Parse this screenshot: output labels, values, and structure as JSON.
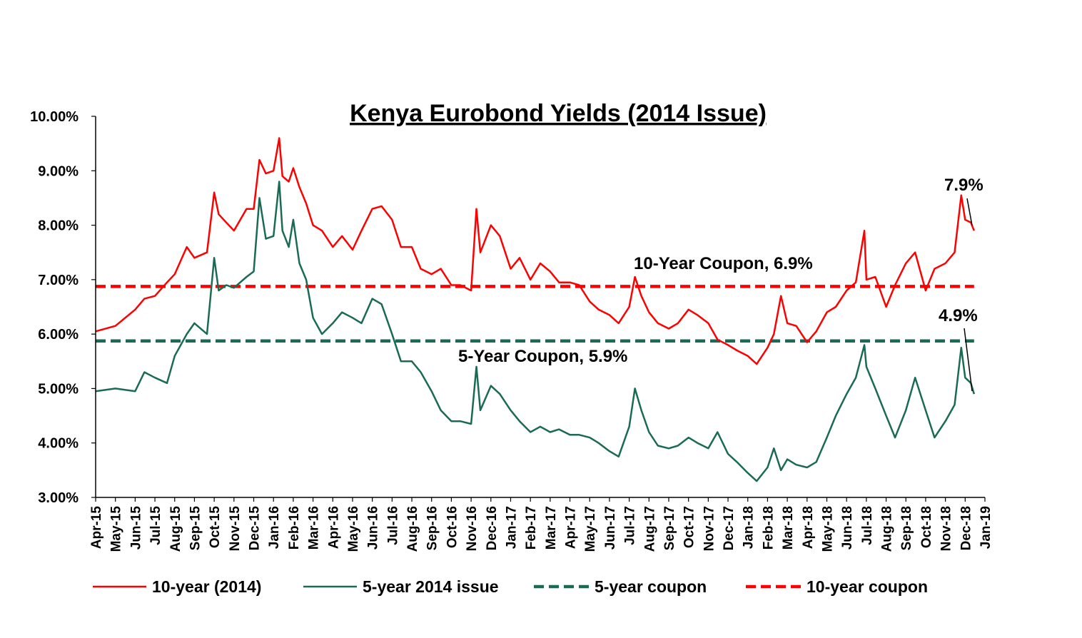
{
  "chart_data": {
    "type": "line",
    "title": "Kenya Eurobond  Yields (2014 Issue)",
    "xlabel": "",
    "ylabel": "",
    "ylim": [
      3.0,
      10.0
    ],
    "y_tick_labels": [
      "3.00%",
      "4.00%",
      "5.00%",
      "6.00%",
      "7.00%",
      "8.00%",
      "9.00%",
      "10.00%"
    ],
    "x_tick_labels": [
      "Apr-15",
      "May-15",
      "Jun-15",
      "Jul-15",
      "Aug-15",
      "Sep-15",
      "Oct-15",
      "Nov-15",
      "Dec-15",
      "Jan-16",
      "Feb-16",
      "Mar-16",
      "Apr-16",
      "May-16",
      "Jun-16",
      "Jul-16",
      "Aug-16",
      "Sep-16",
      "Oct-16",
      "Nov-16",
      "Dec-16",
      "Jan-17",
      "Feb-17",
      "Mar-17",
      "Apr-17",
      "May-17",
      "Jun-17",
      "Jul-17",
      "Aug-17",
      "Sep-17",
      "Oct-17",
      "Nov-17",
      "Dec-17",
      "Jan-18",
      "Feb-18",
      "Mar-18",
      "Apr-18",
      "May-18",
      "Jun-18",
      "Jul-18",
      "Aug-18",
      "Sep-18",
      "Oct-18",
      "Nov-18",
      "Dec-18",
      "Jan-19"
    ],
    "grid": false,
    "legend_position": "bottom",
    "series": [
      {
        "name": "10-year (2014)",
        "color": "#ff0000",
        "style": "solid",
        "x": [
          "2015-04-01",
          "2015-05-01",
          "2015-06-01",
          "2015-06-15",
          "2015-07-01",
          "2015-07-20",
          "2015-08-01",
          "2015-08-20",
          "2015-09-01",
          "2015-09-20",
          "2015-10-01",
          "2015-10-08",
          "2015-10-20",
          "2015-11-01",
          "2015-11-20",
          "2015-12-01",
          "2015-12-10",
          "2015-12-20",
          "2016-01-01",
          "2016-01-10",
          "2016-01-15",
          "2016-01-25",
          "2016-02-01",
          "2016-02-10",
          "2016-02-20",
          "2016-03-01",
          "2016-03-15",
          "2016-04-01",
          "2016-04-15",
          "2016-05-01",
          "2016-05-15",
          "2016-06-01",
          "2016-06-15",
          "2016-07-01",
          "2016-07-15",
          "2016-08-01",
          "2016-08-15",
          "2016-09-01",
          "2016-09-15",
          "2016-10-01",
          "2016-10-15",
          "2016-11-01",
          "2016-11-09",
          "2016-11-15",
          "2016-12-01",
          "2016-12-15",
          "2017-01-01",
          "2017-01-15",
          "2017-02-01",
          "2017-02-15",
          "2017-03-01",
          "2017-03-15",
          "2017-04-01",
          "2017-04-15",
          "2017-05-01",
          "2017-05-15",
          "2017-06-01",
          "2017-06-15",
          "2017-07-01",
          "2017-07-10",
          "2017-07-20",
          "2017-08-01",
          "2017-08-15",
          "2017-09-01",
          "2017-09-15",
          "2017-10-01",
          "2017-10-15",
          "2017-11-01",
          "2017-11-15",
          "2017-12-01",
          "2017-12-15",
          "2018-01-01",
          "2018-01-15",
          "2018-02-01",
          "2018-02-10",
          "2018-02-20",
          "2018-03-01",
          "2018-03-15",
          "2018-04-01",
          "2018-04-15",
          "2018-05-01",
          "2018-05-15",
          "2018-06-01",
          "2018-06-15",
          "2018-06-28",
          "2018-07-01",
          "2018-07-15",
          "2018-08-01",
          "2018-08-15",
          "2018-09-01",
          "2018-09-15",
          "2018-10-01",
          "2018-10-15",
          "2018-11-01",
          "2018-11-15",
          "2018-11-25",
          "2018-12-01",
          "2018-12-10",
          "2018-12-15"
        ],
        "y": [
          6.05,
          6.15,
          6.45,
          6.65,
          6.7,
          6.95,
          7.1,
          7.6,
          7.4,
          7.5,
          8.6,
          8.2,
          8.05,
          7.9,
          8.3,
          8.3,
          9.2,
          8.95,
          9.0,
          9.6,
          8.9,
          8.8,
          9.05,
          8.7,
          8.4,
          8.0,
          7.9,
          7.6,
          7.8,
          7.55,
          7.9,
          8.3,
          8.35,
          8.1,
          7.6,
          7.6,
          7.2,
          7.1,
          7.2,
          6.9,
          6.9,
          6.8,
          8.3,
          7.5,
          8.0,
          7.8,
          7.2,
          7.4,
          7.0,
          7.3,
          7.15,
          6.95,
          6.95,
          6.9,
          6.6,
          6.45,
          6.35,
          6.2,
          6.5,
          7.05,
          6.7,
          6.4,
          6.2,
          6.1,
          6.2,
          6.45,
          6.35,
          6.2,
          5.9,
          5.8,
          5.7,
          5.6,
          5.45,
          5.75,
          6.0,
          6.7,
          6.2,
          6.15,
          5.85,
          6.05,
          6.4,
          6.5,
          6.8,
          6.95,
          7.9,
          7.0,
          7.05,
          6.5,
          6.9,
          7.3,
          7.5,
          6.8,
          7.2,
          7.3,
          7.5,
          8.55,
          8.1,
          8.05,
          7.9
        ]
      },
      {
        "name": "5-year 2014 issue",
        "color": "#1a6b55",
        "style": "solid",
        "x": [
          "2015-04-01",
          "2015-05-01",
          "2015-06-01",
          "2015-06-15",
          "2015-07-01",
          "2015-07-20",
          "2015-08-01",
          "2015-08-20",
          "2015-09-01",
          "2015-09-20",
          "2015-10-01",
          "2015-10-08",
          "2015-10-20",
          "2015-11-01",
          "2015-11-20",
          "2015-12-01",
          "2015-12-10",
          "2015-12-20",
          "2016-01-01",
          "2016-01-10",
          "2016-01-15",
          "2016-01-25",
          "2016-02-01",
          "2016-02-10",
          "2016-02-20",
          "2016-03-01",
          "2016-03-15",
          "2016-04-01",
          "2016-04-15",
          "2016-05-01",
          "2016-05-15",
          "2016-06-01",
          "2016-06-15",
          "2016-07-01",
          "2016-07-15",
          "2016-08-01",
          "2016-08-15",
          "2016-09-01",
          "2016-09-15",
          "2016-10-01",
          "2016-10-15",
          "2016-11-01",
          "2016-11-09",
          "2016-11-15",
          "2016-12-01",
          "2016-12-15",
          "2017-01-01",
          "2017-01-15",
          "2017-02-01",
          "2017-02-15",
          "2017-03-01",
          "2017-03-15",
          "2017-04-01",
          "2017-04-15",
          "2017-05-01",
          "2017-05-15",
          "2017-06-01",
          "2017-06-15",
          "2017-07-01",
          "2017-07-10",
          "2017-07-20",
          "2017-08-01",
          "2017-08-15",
          "2017-09-01",
          "2017-09-15",
          "2017-10-01",
          "2017-10-15",
          "2017-11-01",
          "2017-11-15",
          "2017-12-01",
          "2017-12-15",
          "2018-01-01",
          "2018-01-15",
          "2018-02-01",
          "2018-02-10",
          "2018-02-20",
          "2018-03-01",
          "2018-03-15",
          "2018-04-01",
          "2018-04-15",
          "2018-05-01",
          "2018-05-15",
          "2018-06-01",
          "2018-06-15",
          "2018-06-28",
          "2018-07-01",
          "2018-07-15",
          "2018-08-01",
          "2018-08-15",
          "2018-09-01",
          "2018-09-15",
          "2018-10-01",
          "2018-10-15",
          "2018-11-01",
          "2018-11-15",
          "2018-11-25",
          "2018-12-01",
          "2018-12-10",
          "2018-12-15"
        ],
        "y": [
          4.95,
          5.0,
          4.95,
          5.3,
          5.2,
          5.1,
          5.6,
          6.0,
          6.2,
          6.0,
          7.4,
          6.8,
          6.9,
          6.85,
          7.05,
          7.15,
          8.5,
          7.75,
          7.8,
          8.8,
          7.9,
          7.6,
          8.1,
          7.3,
          7.0,
          6.3,
          6.0,
          6.2,
          6.4,
          6.3,
          6.2,
          6.65,
          6.55,
          6.0,
          5.5,
          5.5,
          5.3,
          4.95,
          4.6,
          4.4,
          4.4,
          4.35,
          5.4,
          4.6,
          5.05,
          4.9,
          4.6,
          4.4,
          4.2,
          4.3,
          4.2,
          4.25,
          4.15,
          4.15,
          4.1,
          4.0,
          3.85,
          3.75,
          4.3,
          5.0,
          4.6,
          4.2,
          3.95,
          3.9,
          3.95,
          4.1,
          4.0,
          3.9,
          4.2,
          3.8,
          3.65,
          3.45,
          3.3,
          3.55,
          3.9,
          3.5,
          3.7,
          3.6,
          3.55,
          3.65,
          4.1,
          4.5,
          4.9,
          5.2,
          5.8,
          5.4,
          5.0,
          4.5,
          4.1,
          4.6,
          5.2,
          4.6,
          4.1,
          4.4,
          4.7,
          5.75,
          5.2,
          5.1,
          4.9
        ]
      },
      {
        "name": "5-year coupon",
        "color": "#1a6b55",
        "style": "dashed",
        "x": [
          "2015-04-01",
          "2018-12-15"
        ],
        "y": [
          5.875,
          5.875
        ]
      },
      {
        "name": "10-year coupon",
        "color": "#ff0000",
        "style": "dashed",
        "x": [
          "2015-04-01",
          "2018-12-15"
        ],
        "y": [
          6.875,
          6.875
        ]
      }
    ],
    "annotations": [
      {
        "text": "10-Year Coupon, 6.9%"
      },
      {
        "text": "5-Year Coupon, 5.9%"
      },
      {
        "text": "7.9%"
      },
      {
        "text": "4.9%"
      }
    ]
  }
}
